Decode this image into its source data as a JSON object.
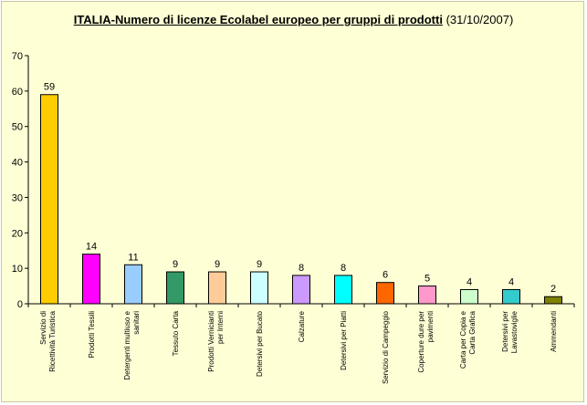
{
  "chart_data": {
    "type": "bar",
    "title": "ITALIA-Numero di licenze Ecolabel europeo per gruppi di prodotti",
    "subtitle": "(31/10/2007)",
    "xlabel": "",
    "ylabel": "",
    "ylim": [
      0,
      70
    ],
    "yticks": [
      0,
      10,
      20,
      30,
      40,
      50,
      60,
      70
    ],
    "grid": false,
    "legend": "none",
    "categories": [
      "Servizio di Ricettività Turistica",
      "Prodotti Tessili",
      "Detergenti multiuso e sanitari",
      "Tessuto Carta",
      "Prodotti Vernicianti per Interni",
      "Detersivi per Bucato",
      "Calzature",
      "Detersivi per Piatti",
      "Servizio di Campeggio",
      "Coperture dure per pavimenti",
      "Carta per Copia e Carta Grafica",
      "Detersivi per Lavastoviglie",
      "Ammendanti"
    ],
    "values": [
      59,
      14,
      11,
      9,
      9,
      9,
      8,
      8,
      6,
      5,
      4,
      4,
      2
    ],
    "colors": [
      "#ffcc00",
      "#ff00ff",
      "#99ccff",
      "#339966",
      "#ffcc99",
      "#ccffff",
      "#cc99ff",
      "#00ffff",
      "#ff6600",
      "#ff99cc",
      "#ccffcc",
      "#33cccc",
      "#808000"
    ]
  }
}
